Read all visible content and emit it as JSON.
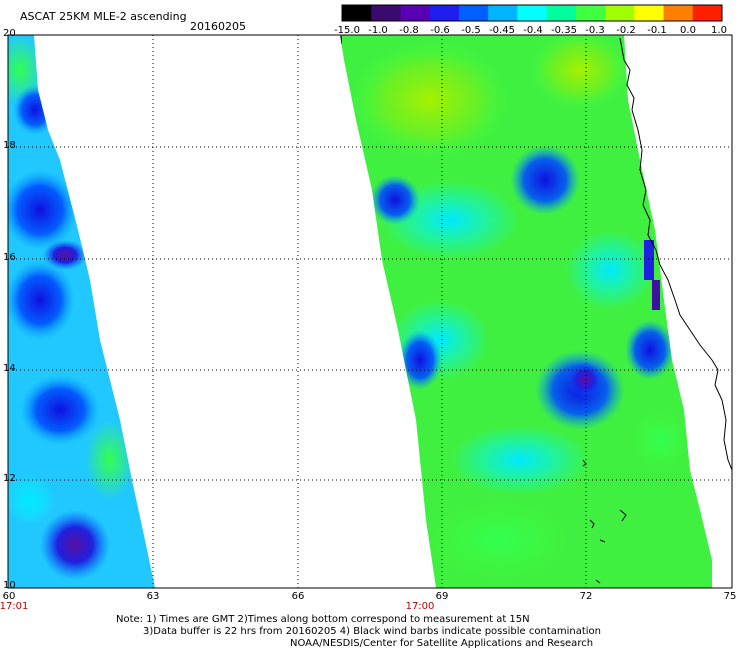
{
  "title": "ASCAT 25KM MLE-2 ascending",
  "date": "20160205",
  "colorbar": {
    "labels": [
      "-15.0",
      "-1.0",
      "-0.8",
      "-0.6",
      "-0.5",
      "-0.45",
      "-0.4",
      "-0.35",
      "-0.3",
      "-0.2",
      "-0.1",
      "0.0",
      "1.0"
    ],
    "colors": [
      "#000000",
      "#3a0a6e",
      "#5a00b4",
      "#1e1ef0",
      "#0060ff",
      "#00b4ff",
      "#00ffff",
      "#00ff9c",
      "#40ff40",
      "#a0ff00",
      "#ffff00",
      "#ff8000",
      "#ff2000"
    ]
  },
  "axes": {
    "y_ticks": [
      "20",
      "18",
      "16",
      "14",
      "12",
      "10"
    ],
    "x_ticks": [
      "60",
      "63",
      "66",
      "69",
      "72",
      "75"
    ]
  },
  "times": {
    "left": "17:01",
    "right": "17:00"
  },
  "notes": {
    "line1": "Note: 1) Times are GMT 2)Times along bottom correspond to measurement at 15N",
    "line2": "3)Data buffer is 22 hrs from 20160205 4) Black wind barbs indicate possible contamination",
    "line3": "NOAA/NESDIS/Center for Satellite Applications and Research"
  }
}
